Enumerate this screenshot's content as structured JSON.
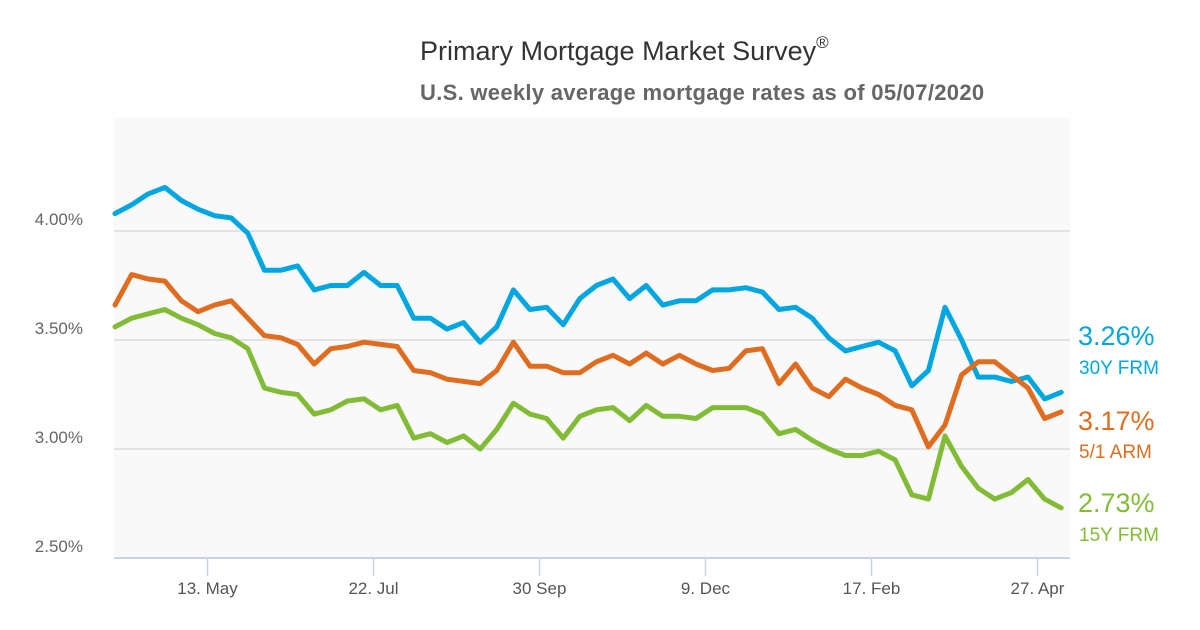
{
  "chart_data": {
    "type": "line",
    "title": "Primary Mortgage Market Survey",
    "title_mark": "®",
    "subtitle": "U.S. weekly average mortgage rates as of 05/07/2020",
    "x_start": "2019-04-04",
    "x_end": "2020-05-07",
    "x_interval": "weekly",
    "x_tick_labels": [
      "13. May",
      "22. Jul",
      "30 Sep",
      "9. Dec",
      "17. Feb",
      "27. Apr"
    ],
    "y_tick_labels": [
      "4.00%",
      "3.50%",
      "3.00%",
      "2.50%"
    ],
    "ylim": [
      2.5,
      4.5
    ],
    "y_unit": "%",
    "grid": true,
    "background": "#f9f9f9",
    "series": [
      {
        "name": "30Y FRM",
        "color": "#00a6e0",
        "end_label": "3.26%",
        "values": [
          4.08,
          4.12,
          4.17,
          4.2,
          4.14,
          4.1,
          4.07,
          4.06,
          3.99,
          3.82,
          3.82,
          3.84,
          3.73,
          3.75,
          3.75,
          3.81,
          3.75,
          3.75,
          3.6,
          3.6,
          3.55,
          3.58,
          3.49,
          3.56,
          3.73,
          3.64,
          3.65,
          3.57,
          3.69,
          3.75,
          3.78,
          3.69,
          3.75,
          3.66,
          3.68,
          3.68,
          3.73,
          3.73,
          3.74,
          3.72,
          3.64,
          3.65,
          3.6,
          3.51,
          3.45,
          3.47,
          3.49,
          3.45,
          3.29,
          3.36,
          3.65,
          3.5,
          3.33,
          3.33,
          3.31,
          3.33,
          3.23,
          3.26
        ]
      },
      {
        "name": "5/1 ARM",
        "color": "#e06c1f",
        "end_label": "3.17%",
        "values": [
          3.66,
          3.8,
          3.78,
          3.77,
          3.68,
          3.63,
          3.66,
          3.68,
          3.6,
          3.52,
          3.51,
          3.48,
          3.39,
          3.46,
          3.47,
          3.49,
          3.48,
          3.47,
          3.36,
          3.35,
          3.32,
          3.31,
          3.3,
          3.36,
          3.49,
          3.38,
          3.38,
          3.35,
          3.35,
          3.4,
          3.43,
          3.39,
          3.44,
          3.39,
          3.43,
          3.39,
          3.36,
          3.37,
          3.45,
          3.46,
          3.3,
          3.39,
          3.28,
          3.24,
          3.32,
          3.28,
          3.25,
          3.2,
          3.18,
          3.01,
          3.11,
          3.34,
          3.4,
          3.4,
          3.34,
          3.28,
          3.14,
          3.17
        ]
      },
      {
        "name": "15Y FRM",
        "color": "#82bc36",
        "end_label": "2.73%",
        "values": [
          3.56,
          3.6,
          3.62,
          3.64,
          3.6,
          3.57,
          3.53,
          3.51,
          3.46,
          3.28,
          3.26,
          3.25,
          3.16,
          3.18,
          3.22,
          3.23,
          3.18,
          3.2,
          3.05,
          3.07,
          3.03,
          3.06,
          3.0,
          3.09,
          3.21,
          3.16,
          3.14,
          3.05,
          3.15,
          3.18,
          3.19,
          3.13,
          3.2,
          3.15,
          3.15,
          3.14,
          3.19,
          3.19,
          3.19,
          3.16,
          3.07,
          3.09,
          3.04,
          3.0,
          2.97,
          2.97,
          2.99,
          2.95,
          2.79,
          2.77,
          3.06,
          2.92,
          2.82,
          2.77,
          2.8,
          2.86,
          2.77,
          2.73
        ]
      }
    ]
  }
}
